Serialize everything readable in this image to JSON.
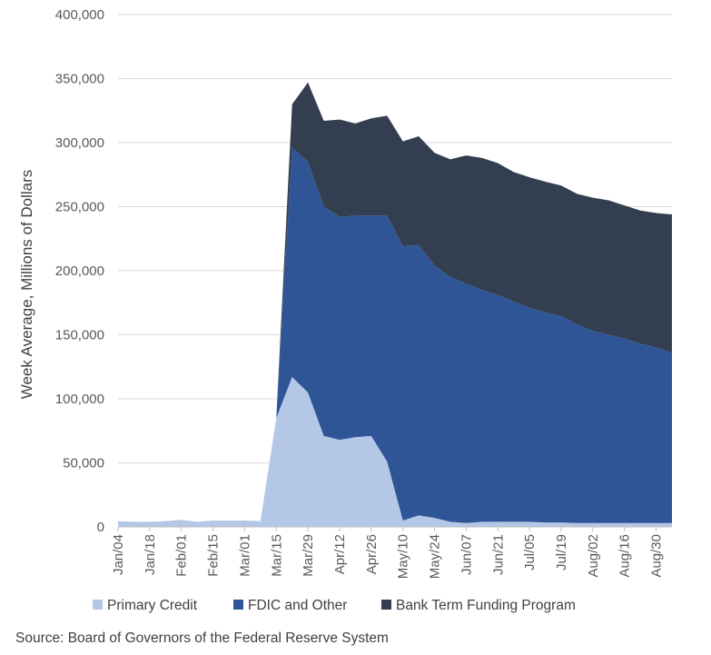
{
  "chart_data": {
    "type": "area",
    "stacked": true,
    "title": "",
    "xlabel": "",
    "ylabel": "Week Average,  Millions of Dollars",
    "ylim": [
      0,
      400000
    ],
    "yticks": [
      0,
      50000,
      100000,
      150000,
      200000,
      250000,
      300000,
      350000,
      400000
    ],
    "ytick_labels": [
      "0",
      "50,000",
      "100,000",
      "150,000",
      "200,000",
      "250,000",
      "300,000",
      "350,000",
      "400,000"
    ],
    "grid": true,
    "legend_position": "bottom",
    "x": [
      "Jan/04",
      "Jan/11",
      "Jan/18",
      "Jan/25",
      "Feb/01",
      "Feb/08",
      "Feb/15",
      "Feb/22",
      "Mar/01",
      "Mar/08",
      "Mar/15",
      "Mar/22",
      "Mar/29",
      "Apr/05",
      "Apr/12",
      "Apr/19",
      "Apr/26",
      "May/03",
      "May/10",
      "May/17",
      "May/24",
      "May/31",
      "Jun/07",
      "Jun/14",
      "Jun/21",
      "Jun/28",
      "Jul/05",
      "Jul/12",
      "Jul/19",
      "Jul/26",
      "Aug/02",
      "Aug/09",
      "Aug/16",
      "Aug/23",
      "Aug/30",
      "Sep/06"
    ],
    "x_tick_labels": [
      "Jan/04",
      "Jan/18",
      "Feb/01",
      "Feb/15",
      "Mar/01",
      "Mar/15",
      "Mar/29",
      "Apr/12",
      "Apr/26",
      "May/10",
      "May/24",
      "Jun/07",
      "Jun/21",
      "Jul/05",
      "Jul/19",
      "Aug/02",
      "Aug/16",
      "Aug/30"
    ],
    "series": [
      {
        "name": "Primary Credit",
        "color": "#b4c7e7",
        "values": [
          4500,
          4000,
          4000,
          4500,
          5500,
          4000,
          5000,
          5000,
          5000,
          4500,
          85000,
          117000,
          105000,
          71000,
          68000,
          70000,
          71000,
          51000,
          5000,
          9000,
          7000,
          4000,
          3000,
          4000,
          4000,
          4000,
          4000,
          3500,
          3500,
          3000,
          3000,
          3000,
          3000,
          3000,
          3000,
          3000
        ]
      },
      {
        "name": "FDIC and Other",
        "color": "#2f5597",
        "values": [
          0,
          0,
          0,
          0,
          0,
          0,
          0,
          0,
          0,
          0,
          0,
          179000,
          180000,
          179000,
          174000,
          173000,
          172000,
          192000,
          214000,
          211000,
          197000,
          191000,
          187000,
          181000,
          177000,
          172000,
          167000,
          164000,
          161000,
          155000,
          150000,
          147000,
          144000,
          140000,
          137000,
          133000
        ]
      },
      {
        "name": "Bank Term Funding Program",
        "color": "#333f50",
        "values": [
          0,
          0,
          0,
          0,
          0,
          0,
          0,
          0,
          0,
          0,
          0,
          34000,
          62000,
          67000,
          76000,
          72000,
          76000,
          78000,
          82000,
          85000,
          88000,
          92000,
          100000,
          103000,
          103000,
          101000,
          102000,
          102000,
          102000,
          102000,
          104000,
          105000,
          104000,
          104000,
          105000,
          108000
        ]
      }
    ],
    "source": "Source: Board of Governors of the Federal Reserve System"
  }
}
